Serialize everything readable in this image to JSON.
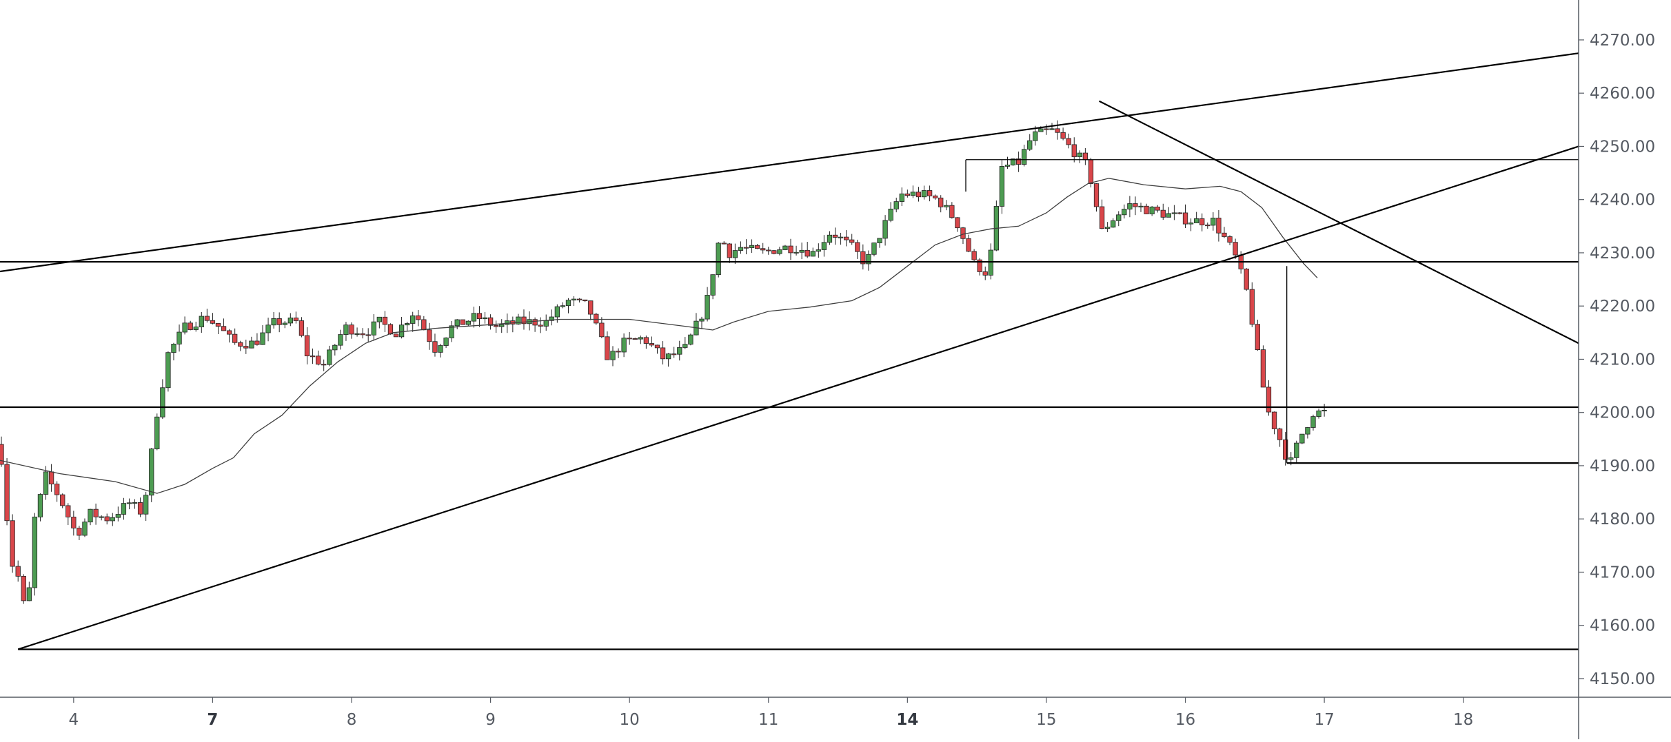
{
  "chart_data": {
    "type": "candlestick",
    "y_axis": {
      "ticks": [
        "4150.00",
        "4160.00",
        "4170.00",
        "4180.00",
        "4190.00",
        "4200.00",
        "4210.00",
        "4220.00",
        "4230.00",
        "4240.00",
        "4250.00",
        "4260.00",
        "4270.00"
      ],
      "ylim": [
        4146.5,
        4277.5
      ]
    },
    "x_axis": {
      "ticks": [
        {
          "label": "4",
          "x": 4.0,
          "bold": false
        },
        {
          "label": "7",
          "x": 5.0,
          "bold": true
        },
        {
          "label": "8",
          "x": 6.0,
          "bold": false
        },
        {
          "label": "9",
          "x": 7.0,
          "bold": false
        },
        {
          "label": "10",
          "x": 8.0,
          "bold": false
        },
        {
          "label": "11",
          "x": 9.0,
          "bold": false
        },
        {
          "label": "14",
          "x": 10.0,
          "bold": true
        },
        {
          "label": "15",
          "x": 11.0,
          "bold": false
        },
        {
          "label": "16",
          "x": 12.0,
          "bold": false
        },
        {
          "label": "17",
          "x": 13.0,
          "bold": false
        },
        {
          "label": "18",
          "x": 14.0,
          "bold": false
        }
      ],
      "xlim": [
        3.47,
        14.83
      ]
    },
    "colors": {
      "up": "#4d9c52",
      "down": "#d9464a",
      "line": "#000000",
      "ma": "#3f3f3f",
      "axis": "#555a62"
    },
    "candle_anchors": [
      [
        3.47,
        4194
      ],
      [
        3.55,
        4172
      ],
      [
        3.62,
        4168
      ],
      [
        3.66,
        4160
      ],
      [
        3.72,
        4180
      ],
      [
        3.8,
        4188
      ],
      [
        3.9,
        4184
      ],
      [
        4.02,
        4177
      ],
      [
        4.12,
        4181
      ],
      [
        4.25,
        4180
      ],
      [
        4.4,
        4183
      ],
      [
        4.5,
        4181
      ],
      [
        4.6,
        4200
      ],
      [
        4.68,
        4211
      ],
      [
        4.8,
        4216
      ],
      [
        4.95,
        4218
      ],
      [
        5.05,
        4216
      ],
      [
        5.15,
        4213
      ],
      [
        5.3,
        4213
      ],
      [
        5.45,
        4217
      ],
      [
        5.6,
        4217
      ],
      [
        5.68,
        4211
      ],
      [
        5.8,
        4209
      ],
      [
        5.95,
        4216
      ],
      [
        6.1,
        4215
      ],
      [
        6.2,
        4217
      ],
      [
        6.32,
        4215
      ],
      [
        6.45,
        4219
      ],
      [
        6.6,
        4212
      ],
      [
        6.72,
        4216
      ],
      [
        6.9,
        4218
      ],
      [
        7.05,
        4216
      ],
      [
        7.2,
        4217
      ],
      [
        7.4,
        4217
      ],
      [
        7.55,
        4221
      ],
      [
        7.7,
        4220
      ],
      [
        7.85,
        4210
      ],
      [
        7.95,
        4213
      ],
      [
        8.1,
        4214
      ],
      [
        8.25,
        4210
      ],
      [
        8.4,
        4212
      ],
      [
        8.55,
        4220
      ],
      [
        8.65,
        4233
      ],
      [
        8.72,
        4230
      ],
      [
        8.8,
        4231
      ],
      [
        8.95,
        4230
      ],
      [
        9.1,
        4231
      ],
      [
        9.2,
        4231
      ],
      [
        9.32,
        4230
      ],
      [
        9.45,
        4234
      ],
      [
        9.6,
        4231
      ],
      [
        9.7,
        4228
      ],
      [
        9.85,
        4236
      ],
      [
        9.95,
        4241
      ],
      [
        10.1,
        4241
      ],
      [
        10.22,
        4240
      ],
      [
        10.35,
        4236
      ],
      [
        10.48,
        4228
      ],
      [
        10.58,
        4226
      ],
      [
        10.68,
        4246
      ],
      [
        10.8,
        4247
      ],
      [
        10.9,
        4252
      ],
      [
        11.05,
        4253
      ],
      [
        11.2,
        4249
      ],
      [
        11.3,
        4246
      ],
      [
        11.4,
        4234
      ],
      [
        11.5,
        4237
      ],
      [
        11.6,
        4239
      ],
      [
        11.75,
        4238
      ],
      [
        11.9,
        4237
      ],
      [
        12.05,
        4236
      ],
      [
        12.2,
        4236
      ],
      [
        12.35,
        4230
      ],
      [
        12.45,
        4222
      ],
      [
        12.55,
        4206
      ],
      [
        12.6,
        4200
      ],
      [
        12.68,
        4195
      ],
      [
        12.75,
        4190
      ],
      [
        12.82,
        4195
      ],
      [
        12.92,
        4200
      ],
      [
        13.0,
        4200
      ]
    ],
    "moving_average": [
      [
        3.47,
        4191
      ],
      [
        3.9,
        4188.5
      ],
      [
        4.3,
        4187
      ],
      [
        4.6,
        4184.8
      ],
      [
        4.8,
        4186.5
      ],
      [
        5.0,
        4189.5
      ],
      [
        5.15,
        4191.5
      ],
      [
        5.3,
        4196
      ],
      [
        5.5,
        4199.5
      ],
      [
        5.7,
        4205
      ],
      [
        5.9,
        4209.5
      ],
      [
        6.1,
        4213
      ],
      [
        6.3,
        4215
      ],
      [
        6.6,
        4215.8
      ],
      [
        7.0,
        4216.5
      ],
      [
        7.5,
        4217.5
      ],
      [
        8.0,
        4217.5
      ],
      [
        8.4,
        4216.2
      ],
      [
        8.6,
        4215.5
      ],
      [
        8.75,
        4217
      ],
      [
        9.0,
        4219
      ],
      [
        9.3,
        4219.8
      ],
      [
        9.6,
        4221
      ],
      [
        9.8,
        4223.5
      ],
      [
        10.0,
        4227.5
      ],
      [
        10.2,
        4231.5
      ],
      [
        10.4,
        4233.5
      ],
      [
        10.6,
        4234.5
      ],
      [
        10.8,
        4235
      ],
      [
        11.0,
        4237.5
      ],
      [
        11.15,
        4240.5
      ],
      [
        11.3,
        4243
      ],
      [
        11.45,
        4244
      ],
      [
        11.7,
        4242.8
      ],
      [
        12.0,
        4242
      ],
      [
        12.25,
        4242.5
      ],
      [
        12.4,
        4241.5
      ],
      [
        12.55,
        4238.5
      ],
      [
        12.7,
        4233
      ],
      [
        12.85,
        4228
      ],
      [
        12.95,
        4225.3
      ]
    ],
    "drawings": [
      {
        "type": "line",
        "from": [
          3.47,
          4226.5
        ],
        "to": [
          14.83,
          4267.5
        ],
        "stroke": 2.2
      },
      {
        "type": "line",
        "from": [
          3.6,
          4155.5
        ],
        "to": [
          14.83,
          4250
        ],
        "stroke": 2.2
      },
      {
        "type": "line",
        "from": [
          11.38,
          4258.5
        ],
        "to": [
          14.83,
          4213
        ],
        "stroke": 2.2
      },
      {
        "type": "line",
        "from": [
          3.47,
          4228.3
        ],
        "to": [
          14.83,
          4228.3
        ],
        "stroke": 2.2
      },
      {
        "type": "line",
        "from": [
          3.47,
          4201
        ],
        "to": [
          14.83,
          4201
        ],
        "stroke": 2.2
      },
      {
        "type": "line",
        "from": [
          3.6,
          4155.5
        ],
        "to": [
          14.83,
          4155.5
        ],
        "stroke": 2.2
      },
      {
        "type": "line",
        "from": [
          12.73,
          4190.5
        ],
        "to": [
          14.83,
          4190.5
        ],
        "stroke": 2.2
      },
      {
        "type": "line",
        "from": [
          10.42,
          4247.5
        ],
        "to": [
          14.83,
          4247.5
        ],
        "stroke": 1.3
      },
      {
        "type": "line",
        "from": [
          10.42,
          4247.5
        ],
        "to": [
          10.42,
          4241.5
        ],
        "stroke": 1.3
      },
      {
        "type": "line",
        "from": [
          12.73,
          4227.5
        ],
        "to": [
          12.73,
          4190.5
        ],
        "stroke": 1.3
      }
    ]
  }
}
